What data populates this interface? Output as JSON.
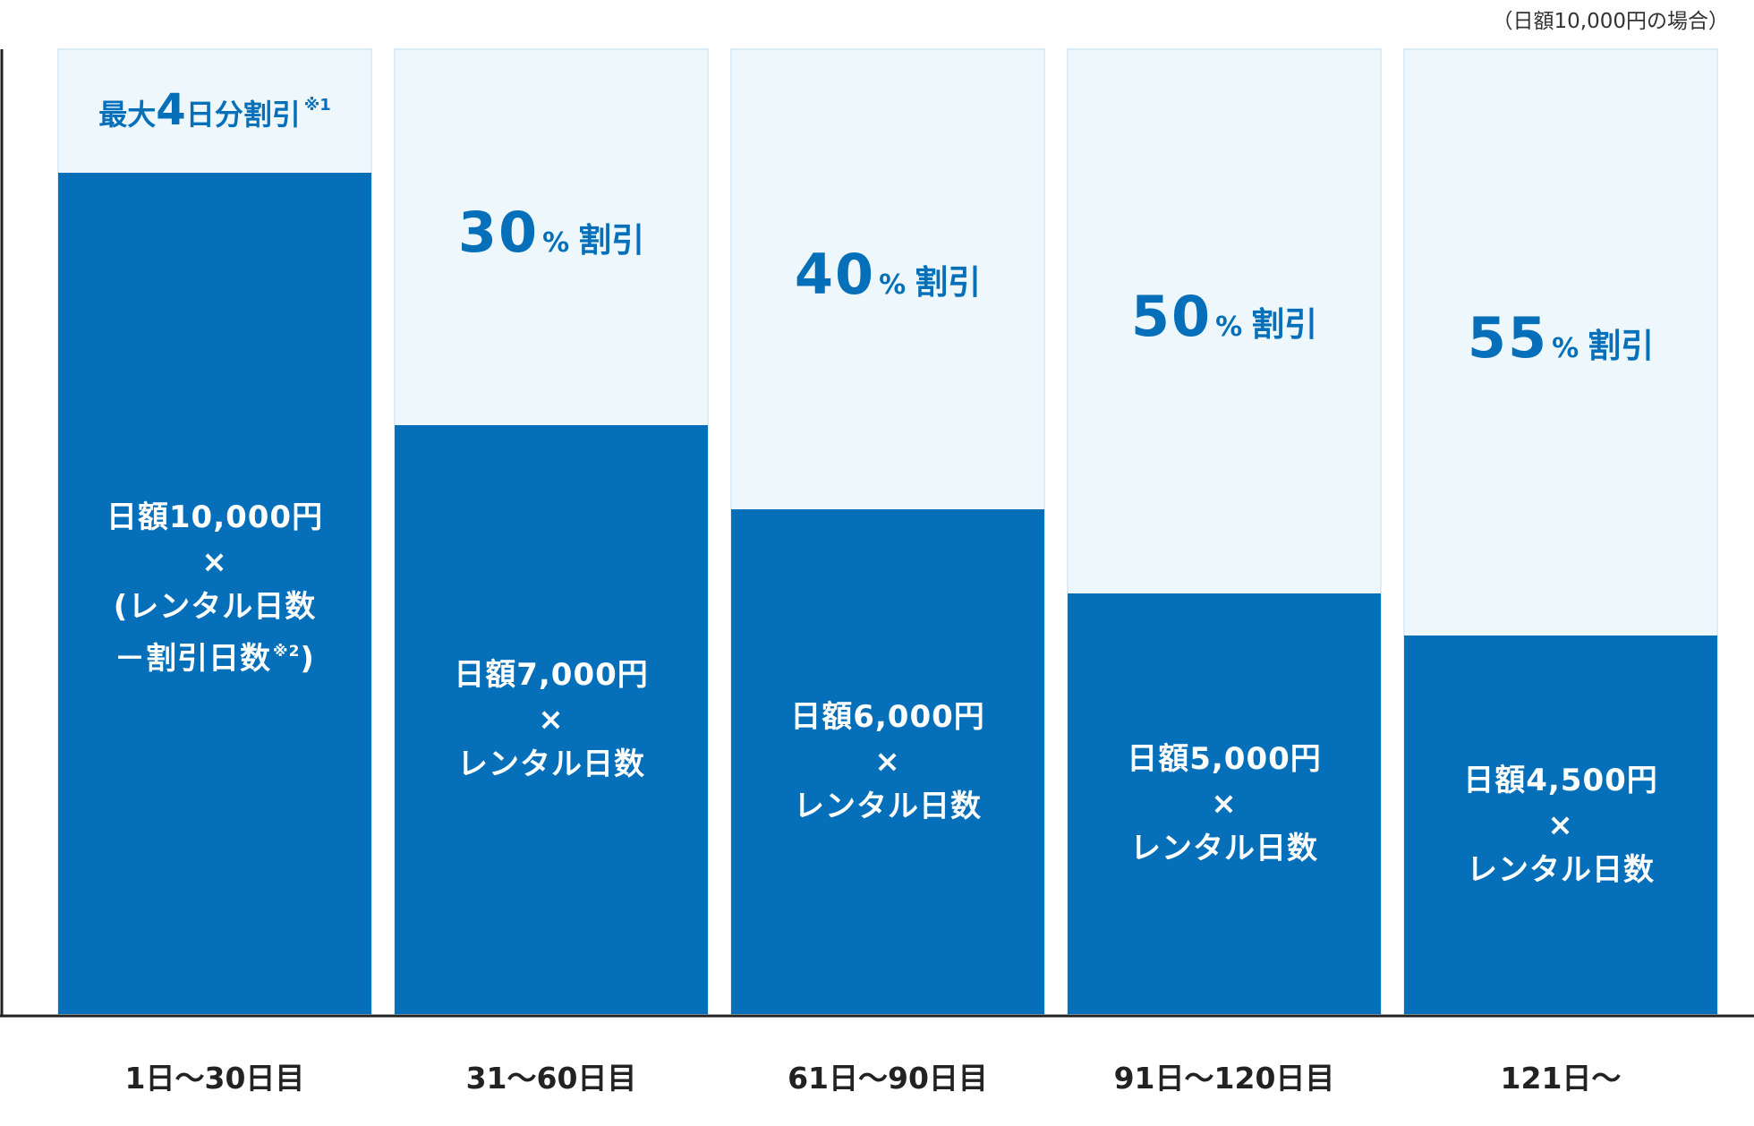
{
  "note": "（日額10,000円の場合）",
  "colors": {
    "bar": "#0570b9",
    "column_bg": "#eef7fc",
    "column_border": "#d4e8f6",
    "text_accent": "#0570b9",
    "axis": "#222222"
  },
  "chart_data": {
    "type": "bar",
    "ylabel": "",
    "ylim": [
      0,
      10000
    ],
    "grid": false,
    "categories": [
      "1日〜30日目",
      "31〜60日目",
      "61日〜90日目",
      "91日〜120日目",
      "121日〜"
    ],
    "series": [
      {
        "values": [
          10000,
          7000,
          6000,
          5000,
          4500
        ]
      }
    ],
    "discount_labels": [
      {
        "pre": "最大",
        "big": "4",
        "post": "日分割引",
        "sup": "※1"
      },
      {
        "big": "30",
        "pct": "%",
        "word": "割引"
      },
      {
        "big": "40",
        "pct": "%",
        "word": "割引"
      },
      {
        "big": "50",
        "pct": "%",
        "word": "割引"
      },
      {
        "big": "55",
        "pct": "%",
        "word": "割引"
      }
    ],
    "formula_labels": [
      [
        "日額10,000円",
        "×",
        "(レンタル日数",
        "－割引日数",
        "※2",
        ")"
      ],
      [
        "日額7,000円",
        "×",
        "レンタル日数"
      ],
      [
        "日額6,000円",
        "×",
        "レンタル日数"
      ],
      [
        "日額5,000円",
        "×",
        "レンタル日数"
      ],
      [
        "日額4,500円",
        "×",
        "レンタル日数"
      ]
    ]
  }
}
